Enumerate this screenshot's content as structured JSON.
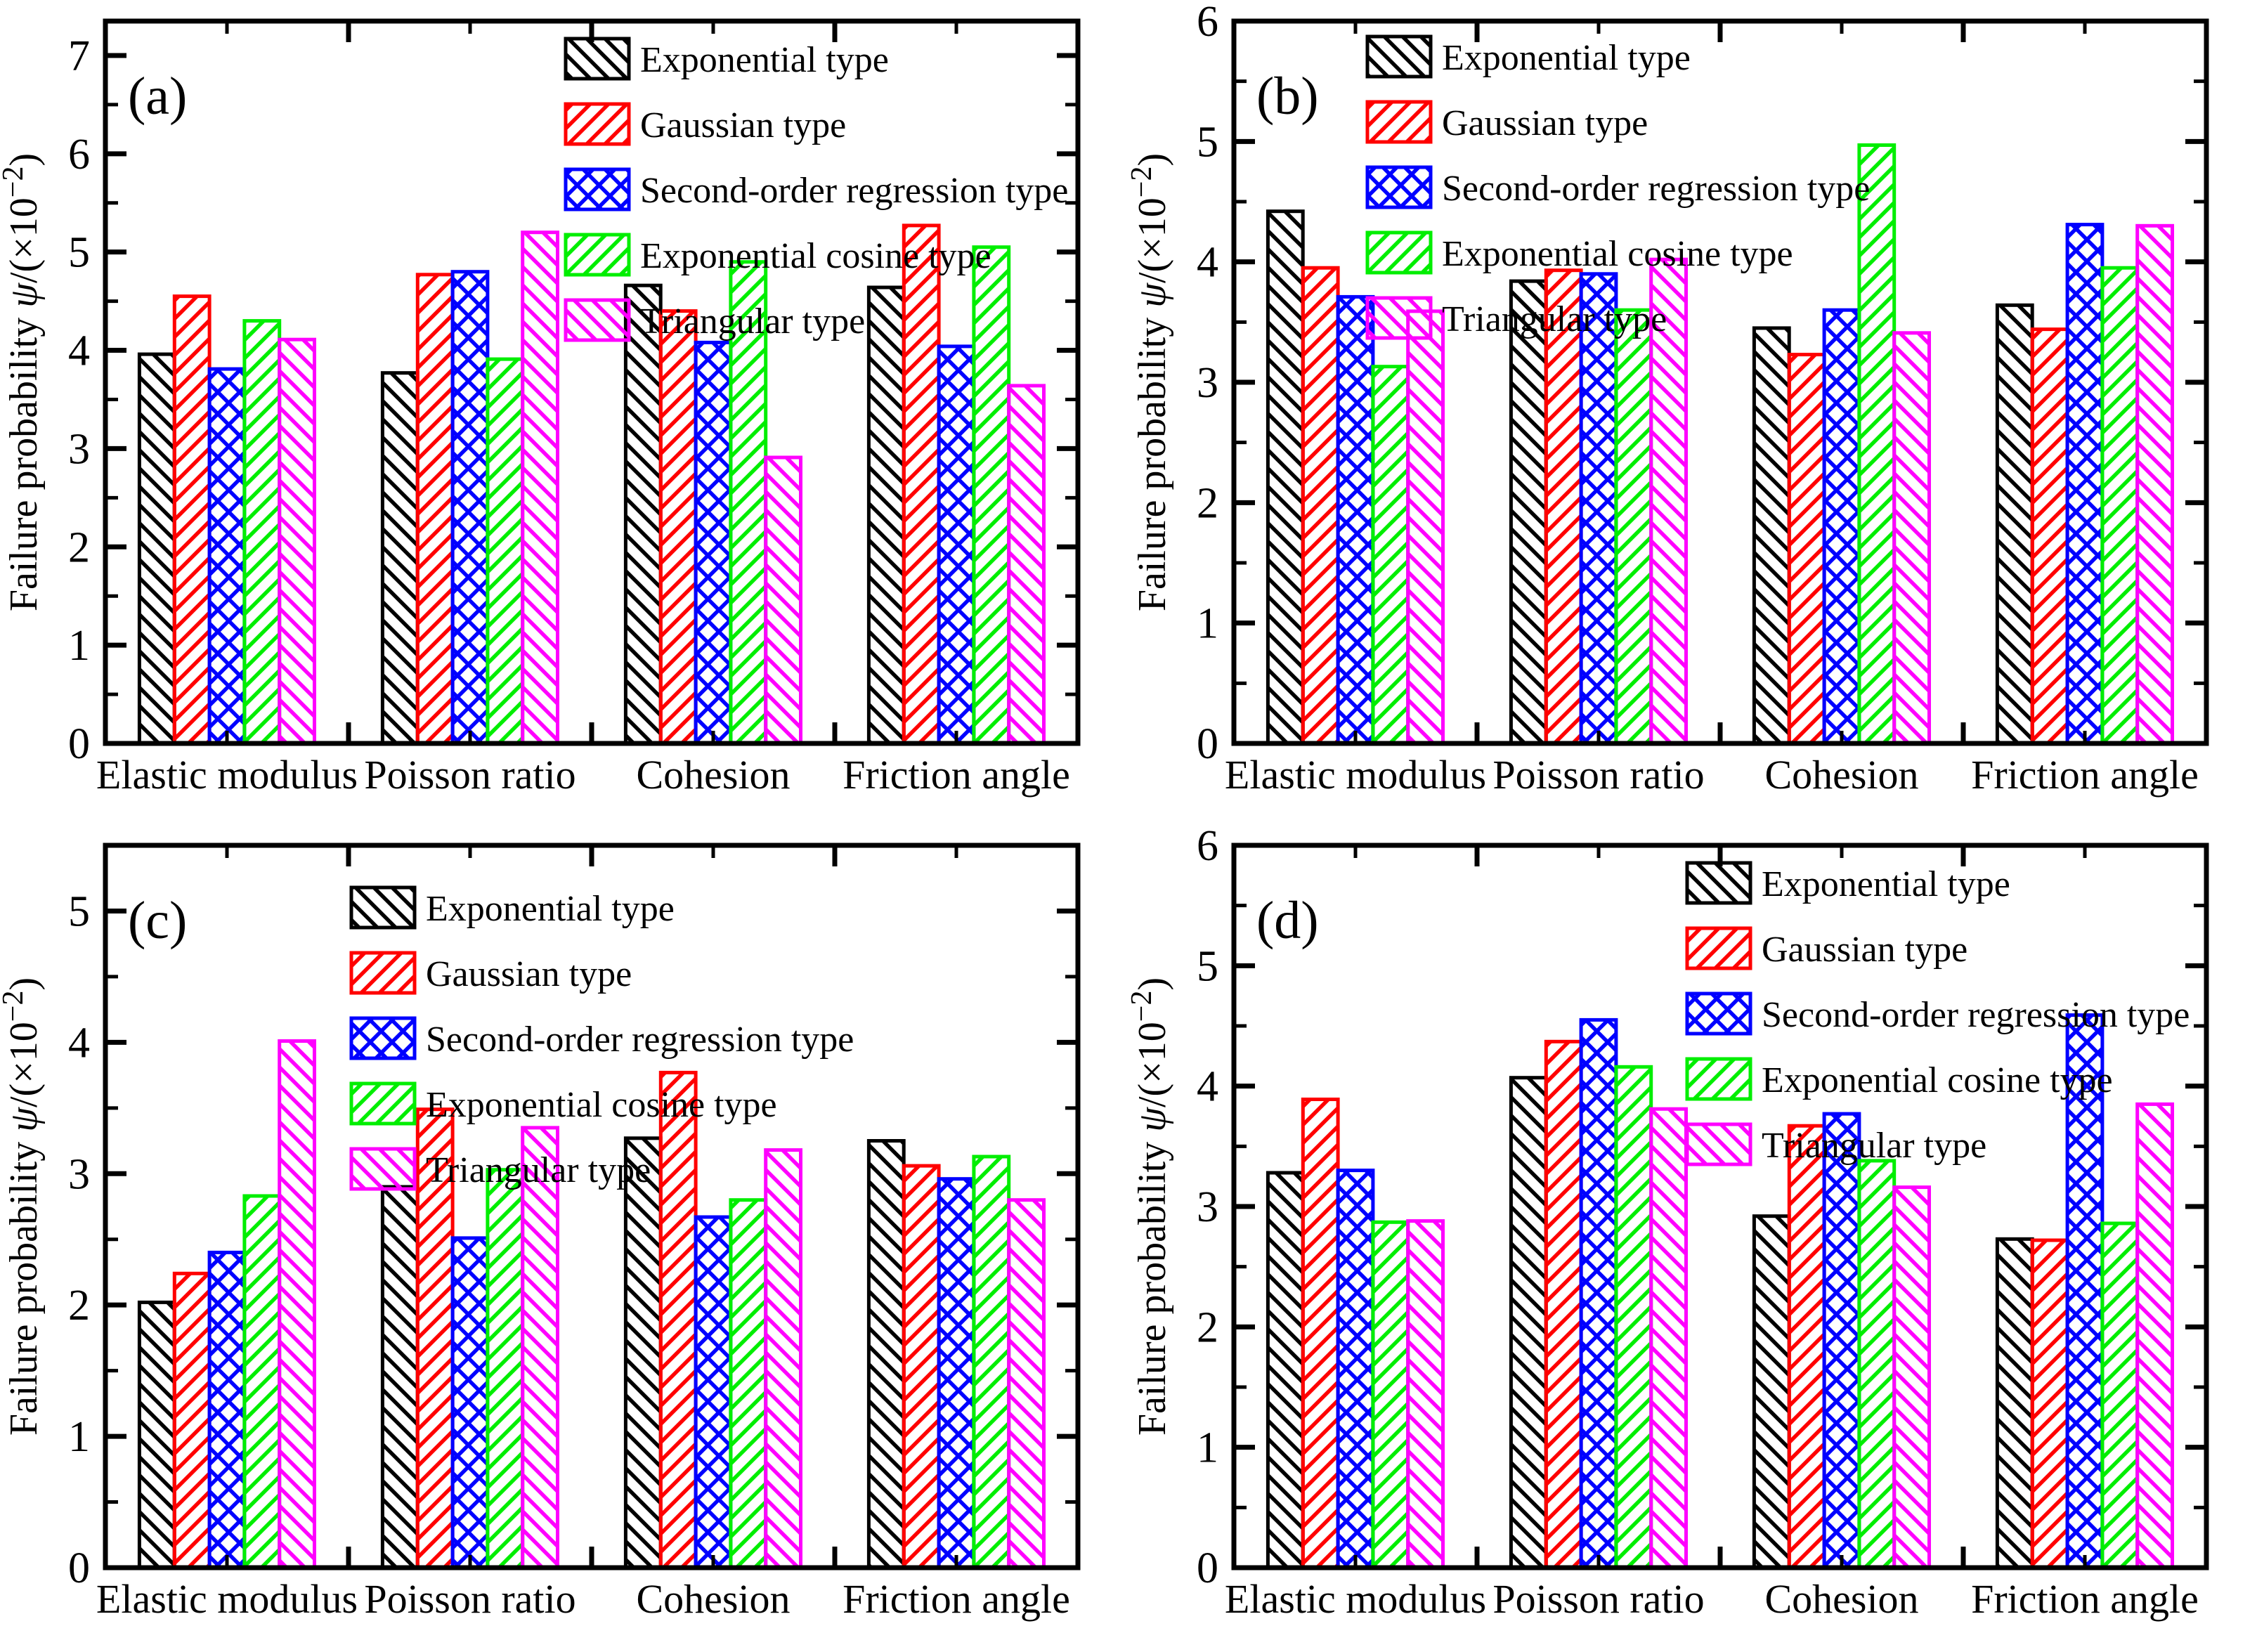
{
  "figure_title": "",
  "colors": {
    "exponential": "#000000",
    "gaussian": "#ff0000",
    "second_order": "#0000ff",
    "exponential_cosine": "#00ee00",
    "triangular": "#ff00ff",
    "axis": "#000000",
    "background": "#ffffff"
  },
  "ylabel": "Failure probability ψ/(×10⁻²)",
  "ylabel_parts": {
    "prefix": "Failure probability ",
    "psi": "ψ",
    "mid": "/(×10",
    "sup": "−2",
    "suffix": ")"
  },
  "chart_data": [
    {
      "panel_label": "(a)",
      "type": "bar",
      "categories": [
        "Elastic modulus",
        "Poisson ratio",
        "Cohesion",
        "Friction angle"
      ],
      "series": [
        {
          "name": "Exponential type",
          "color": "#000000",
          "hatch": "diag-down",
          "values": [
            3.96,
            3.77,
            4.66,
            4.64
          ]
        },
        {
          "name": "Gaussian type",
          "color": "#ff0000",
          "hatch": "diag-up",
          "values": [
            4.55,
            4.77,
            4.4,
            5.27
          ]
        },
        {
          "name": "Second-order regression type",
          "color": "#0000ff",
          "hatch": "cross",
          "values": [
            3.81,
            4.8,
            4.08,
            4.04
          ]
        },
        {
          "name": "Exponential cosine type",
          "color": "#00ee00",
          "hatch": "diag-up",
          "values": [
            4.3,
            3.91,
            4.9,
            5.05
          ]
        },
        {
          "name": "Triangular type",
          "color": "#ff00ff",
          "hatch": "diag-down",
          "values": [
            4.11,
            5.2,
            2.91,
            3.64
          ]
        }
      ],
      "ylim": [
        0,
        7.35
      ],
      "yticks": [
        0,
        1,
        2,
        3,
        4,
        5,
        6,
        7
      ],
      "yminor_step": 0.5,
      "grid": false,
      "legend_position": {
        "x": 805,
        "y": 55
      },
      "ylabel": "Failure probability ψ/(×10⁻²)",
      "xlabel": ""
    },
    {
      "panel_label": "(b)",
      "type": "bar",
      "categories": [
        "Elastic modulus",
        "Poisson ratio",
        "Cohesion",
        "Friction angle"
      ],
      "series": [
        {
          "name": "Exponential type",
          "color": "#000000",
          "hatch": "diag-down",
          "values": [
            4.42,
            3.84,
            3.45,
            3.64
          ]
        },
        {
          "name": "Gaussian type",
          "color": "#ff0000",
          "hatch": "diag-up",
          "values": [
            3.95,
            3.93,
            3.23,
            3.44
          ]
        },
        {
          "name": "Second-order regression type",
          "color": "#0000ff",
          "hatch": "cross",
          "values": [
            3.71,
            3.9,
            3.6,
            4.31
          ]
        },
        {
          "name": "Exponential cosine type",
          "color": "#00ee00",
          "hatch": "diag-up",
          "values": [
            3.13,
            3.6,
            4.97,
            3.95
          ]
        },
        {
          "name": "Triangular type",
          "color": "#ff00ff",
          "hatch": "diag-down",
          "values": [
            3.59,
            4.02,
            3.41,
            4.3
          ]
        }
      ],
      "ylim": [
        0,
        6
      ],
      "yticks": [
        0,
        1,
        2,
        3,
        4,
        5,
        6
      ],
      "yminor_step": 0.5,
      "grid": false,
      "legend_position": {
        "x": 340,
        "y": 52
      },
      "ylabel": "Failure probability ψ/(×10⁻²)",
      "xlabel": ""
    },
    {
      "panel_label": "(c)",
      "type": "bar",
      "categories": [
        "Elastic modulus",
        "Poisson ratio",
        "Cohesion",
        "Friction angle"
      ],
      "series": [
        {
          "name": "Exponential type",
          "color": "#000000",
          "hatch": "diag-down",
          "values": [
            2.02,
            2.9,
            3.27,
            3.25
          ]
        },
        {
          "name": "Gaussian type",
          "color": "#ff0000",
          "hatch": "diag-up",
          "values": [
            2.24,
            3.49,
            3.77,
            3.06
          ]
        },
        {
          "name": "Second-order regression type",
          "color": "#0000ff",
          "hatch": "cross",
          "values": [
            2.4,
            2.51,
            2.67,
            2.96
          ]
        },
        {
          "name": "Exponential cosine type",
          "color": "#00ee00",
          "hatch": "diag-up",
          "values": [
            2.83,
            3.03,
            2.8,
            3.13
          ]
        },
        {
          "name": "Triangular type",
          "color": "#ff00ff",
          "hatch": "diag-down",
          "values": [
            4.01,
            3.35,
            3.18,
            2.8
          ]
        }
      ],
      "ylim": [
        0,
        5.5
      ],
      "yticks": [
        0,
        1,
        2,
        3,
        4,
        5
      ],
      "yminor_step": 0.5,
      "grid": false,
      "legend_position": {
        "x": 500,
        "y": 90
      },
      "ylabel": "Failure probability ψ/(×10⁻²)",
      "xlabel": ""
    },
    {
      "panel_label": "(d)",
      "type": "bar",
      "categories": [
        "Elastic modulus",
        "Poisson ratio",
        "Cohesion",
        "Friction angle"
      ],
      "series": [
        {
          "name": "Exponential type",
          "color": "#000000",
          "hatch": "diag-down",
          "values": [
            3.28,
            4.07,
            2.92,
            2.73
          ]
        },
        {
          "name": "Gaussian type",
          "color": "#ff0000",
          "hatch": "diag-up",
          "values": [
            3.89,
            4.37,
            3.67,
            2.72
          ]
        },
        {
          "name": "Second-order regression type",
          "color": "#0000ff",
          "hatch": "cross",
          "values": [
            3.3,
            4.55,
            3.77,
            4.59
          ]
        },
        {
          "name": "Exponential cosine type",
          "color": "#00ee00",
          "hatch": "diag-up",
          "values": [
            2.87,
            4.16,
            3.38,
            2.86
          ]
        },
        {
          "name": "Triangular type",
          "color": "#ff00ff",
          "hatch": "diag-down",
          "values": [
            2.88,
            3.81,
            3.16,
            3.85
          ]
        }
      ],
      "ylim": [
        0,
        6
      ],
      "yticks": [
        0,
        1,
        2,
        3,
        4,
        5,
        6
      ],
      "yminor_step": 0.5,
      "grid": false,
      "legend_position": {
        "x": 795,
        "y": 55
      },
      "ylabel": "Failure probability ψ/(×10⁻²)",
      "xlabel": ""
    }
  ]
}
